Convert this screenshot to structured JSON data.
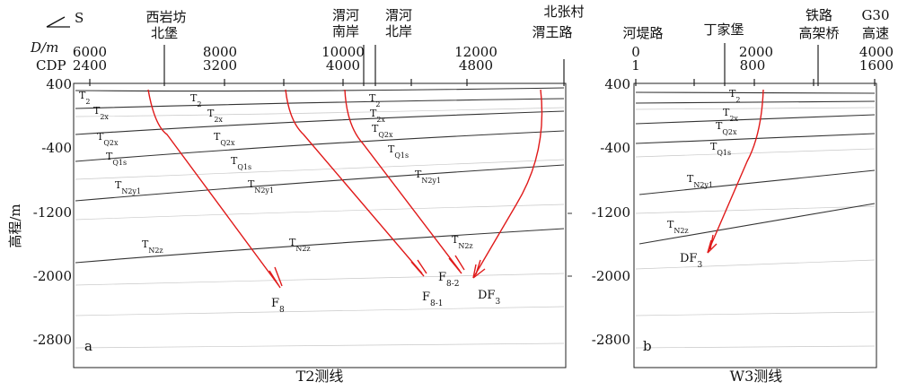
{
  "direction_label": "S",
  "axis": {
    "d_label": "D/m",
    "cdp_label": "CDP",
    "y_label": "高程/m",
    "y_ticks_left": [
      "400",
      "-400",
      "-1200",
      "-2000",
      "-2800"
    ],
    "y_ticks_right": [
      "400",
      "-400",
      "-1200",
      "-2000",
      "-2800"
    ]
  },
  "panel_a": {
    "label": "a",
    "line_name": "T2测线",
    "top_ticks": [
      {
        "d": "6000",
        "cdp": "2400"
      },
      {
        "d": "8000",
        "cdp": "3200"
      },
      {
        "d": "10000",
        "cdp": "4000"
      },
      {
        "d": "12000",
        "cdp": "4800"
      }
    ],
    "places": [
      "西岩坊",
      "北堡",
      "渭河",
      "南岸",
      "渭河",
      "北岸",
      "北张村",
      "渭王路"
    ],
    "horizons": [
      {
        "main": "T",
        "sub": "2"
      },
      {
        "main": "T",
        "sub": "2x"
      },
      {
        "main": "T",
        "sub": "Q2x"
      },
      {
        "main": "T",
        "sub": "Q1s"
      },
      {
        "main": "T",
        "sub": "N2y1"
      },
      {
        "main": "T",
        "sub": "N2z"
      }
    ],
    "faults": [
      {
        "main": "F",
        "sub": "8"
      },
      {
        "main": "F",
        "sub": "8-1"
      },
      {
        "main": "F",
        "sub": "8-2"
      },
      {
        "main": "DF",
        "sub": "3"
      }
    ]
  },
  "panel_b": {
    "label": "b",
    "line_name": "W3测线",
    "top_ticks": [
      {
        "d": "0",
        "cdp": "1"
      },
      {
        "d": "2000",
        "cdp": "800"
      },
      {
        "d": "4000",
        "cdp": "1600"
      }
    ],
    "places": [
      "河堤路",
      "丁家堡",
      "铁路",
      "高架桥",
      "G30",
      "高速"
    ],
    "horizons": [
      {
        "main": "T",
        "sub": "2"
      },
      {
        "main": "T",
        "sub": "2x"
      },
      {
        "main": "T",
        "sub": "Q2x"
      },
      {
        "main": "T",
        "sub": "Q1s"
      },
      {
        "main": "T",
        "sub": "N2y1"
      },
      {
        "main": "T",
        "sub": "N2z"
      }
    ],
    "faults": [
      {
        "main": "DF",
        "sub": "3"
      }
    ]
  }
}
